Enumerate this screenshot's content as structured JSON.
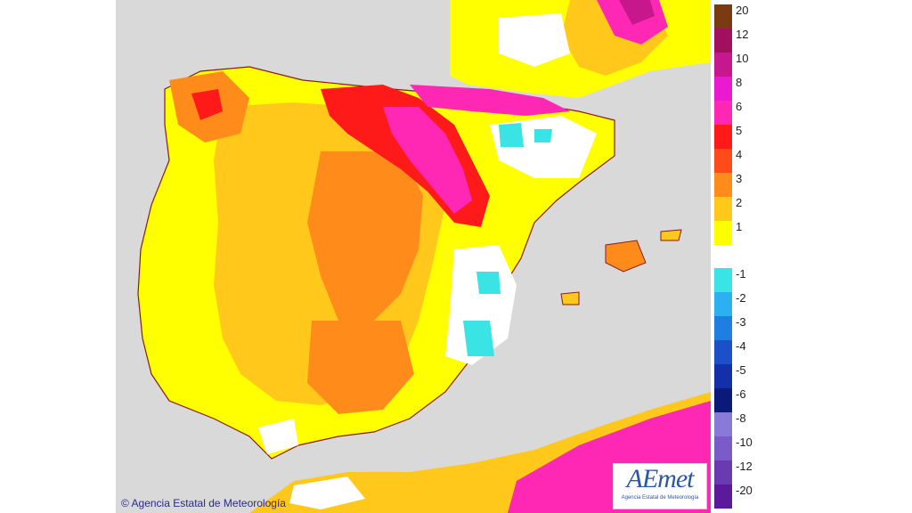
{
  "map": {
    "copyright": "© Agencia Estatal de Meteorología",
    "logo": {
      "mark": "AEmet",
      "subtitle": "Agencia Estatal de Meteorología"
    },
    "colors": {
      "sea": "#d9d9d9",
      "border": "#8b1a1a",
      "ocean_land_gray": "#d9d9d9"
    }
  },
  "legend": {
    "bins": [
      {
        "label": "20",
        "color": "#7a3b12"
      },
      {
        "label": "12",
        "color": "#a0105e"
      },
      {
        "label": "10",
        "color": "#c6178c"
      },
      {
        "label": "8",
        "color": "#e91ad2"
      },
      {
        "label": "6",
        "color": "#ff28b4"
      },
      {
        "label": "5",
        "color": "#ff1a1a"
      },
      {
        "label": "4",
        "color": "#ff4a1a"
      },
      {
        "label": "3",
        "color": "#ff8c1a"
      },
      {
        "label": "2",
        "color": "#ffc81a"
      },
      {
        "label": "1",
        "color": "#ffff00"
      },
      {
        "label": "",
        "color": "#ffffff"
      },
      {
        "label": "-1",
        "color": "#3ae4e4"
      },
      {
        "label": "-2",
        "color": "#2bb0f2"
      },
      {
        "label": "-3",
        "color": "#1f7fe0"
      },
      {
        "label": "-4",
        "color": "#1b50c8"
      },
      {
        "label": "-5",
        "color": "#1330a8"
      },
      {
        "label": "-6",
        "color": "#0a1a78"
      },
      {
        "label": "-8",
        "color": "#8a7ad8"
      },
      {
        "label": "-10",
        "color": "#7a5cc8"
      },
      {
        "label": "-12",
        "color": "#6a3ab0"
      },
      {
        "label": "-20",
        "color": "#5a1a9a"
      }
    ]
  }
}
